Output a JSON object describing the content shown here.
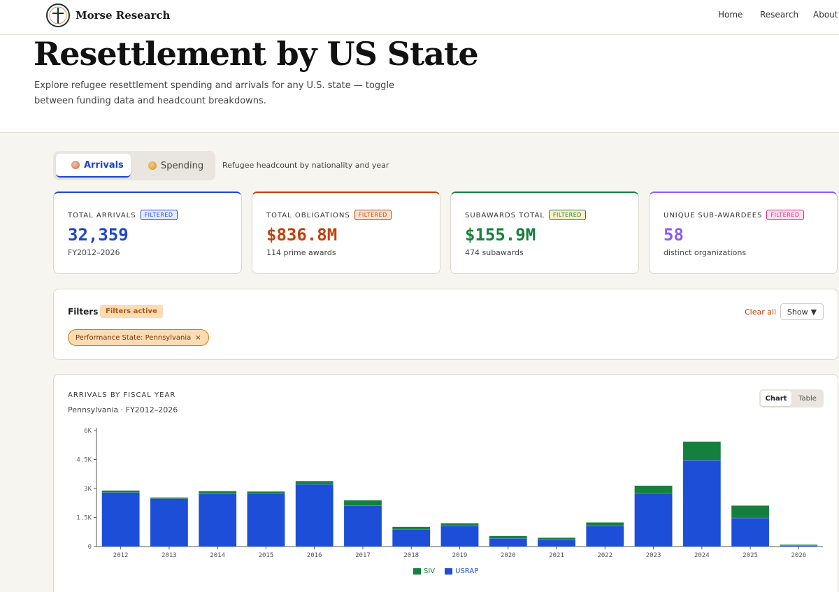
{
  "header": {
    "brand": "Morse Research",
    "nav": [
      "Home",
      "Research",
      "About"
    ]
  },
  "hero": {
    "title": "Resettlement by US State",
    "description": "Explore refugee resettlement spending and arrivals for any U.S. state — toggle between funding data and headcount breakdowns."
  },
  "tabs": {
    "arrivals": "Arrivals",
    "spending": "Spending",
    "description": "Refugee headcount by nationality and year"
  },
  "cards": [
    {
      "label": "TOTAL ARRIVALS",
      "badge": "FILTERED",
      "value": "32,359",
      "sub": "FY2012–2026",
      "color": "#1f46c9",
      "badge_bg": "#e6ebfb"
    },
    {
      "label": "TOTAL OBLIGATIONS",
      "badge": "FILTERED",
      "value": "$836.8M",
      "sub": "114 prime awards",
      "color": "#c2410c",
      "badge_bg": "#fde4d3"
    },
    {
      "label": "SUBAWARDS TOTAL",
      "badge": "FILTERED",
      "value": "$155.9M",
      "sub": "474 subawards",
      "color": "#15803d",
      "badge_bg": "#fcefc7"
    },
    {
      "label": "UNIQUE SUB-AWARDEES",
      "badge": "FILTERED",
      "value": "58",
      "sub": "distinct organizations",
      "color": "#8b5cf6",
      "badge_bg": "#fbe2ee"
    }
  ],
  "filters": {
    "title": "Filters",
    "active_badge": "Filters active",
    "clear": "Clear all",
    "show": "Show",
    "chip": "Performance State: Pennsylvania",
    "chip_close": "×"
  },
  "chart_section": {
    "title": "ARRIVALS BY FISCAL YEAR",
    "subtitle": "Pennsylvania · FY2012–2026",
    "toggle_chart": "Chart",
    "toggle_table": "Table"
  },
  "chart_data": {
    "type": "bar",
    "stacked": true,
    "categories": [
      "2012",
      "2013",
      "2014",
      "2015",
      "2016",
      "2017",
      "2018",
      "2019",
      "2020",
      "2021",
      "2022",
      "2023",
      "2024",
      "2025",
      "2026"
    ],
    "series": [
      {
        "name": "USRAP",
        "color": "#1d4ed8",
        "values": [
          2800,
          2480,
          2720,
          2750,
          3220,
          2120,
          900,
          1080,
          430,
          360,
          1080,
          2760,
          4470,
          1480,
          60
        ]
      },
      {
        "name": "SIV",
        "color": "#15803d",
        "values": [
          100,
          60,
          150,
          100,
          170,
          280,
          120,
          130,
          120,
          100,
          170,
          390,
          960,
          640,
          40
        ]
      }
    ],
    "legend": [
      "SIV",
      "USRAP"
    ],
    "yticks": [
      "0",
      "1.5K",
      "3K",
      "4.5K",
      "6K"
    ],
    "ylim": [
      0,
      6000
    ]
  }
}
